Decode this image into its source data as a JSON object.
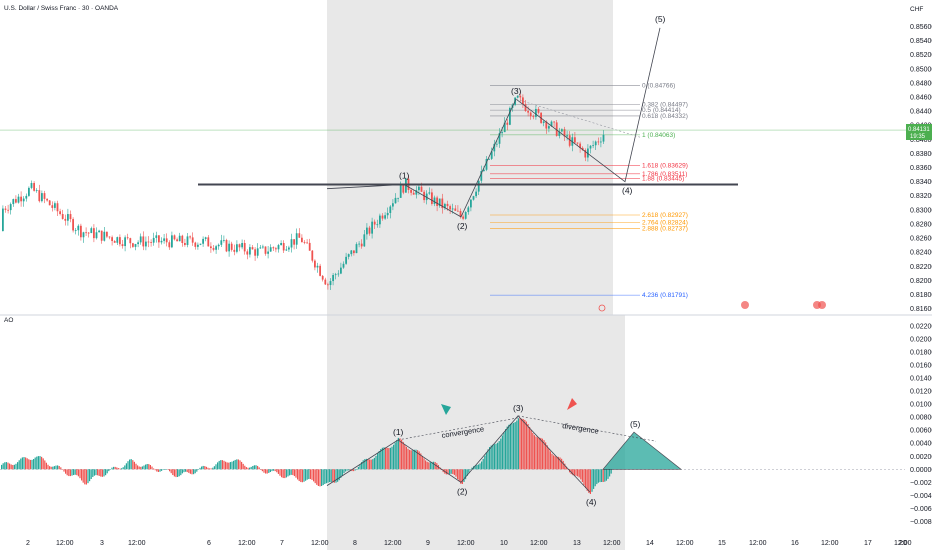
{
  "header": {
    "symbol_title": "U.S. Dollar / Swiss Franc · 30 · OANDA",
    "currency": "CHF",
    "last_price": "0.84131",
    "countdown": "19:35"
  },
  "indicator": {
    "label": "AO"
  },
  "colors": {
    "bull": "#26a69a",
    "bear": "#ef5350",
    "highlight": "#e8e8e8",
    "fib_gray": "#787b86",
    "fib_green": "#4caf50",
    "fib_red": "#f23645",
    "fib_orange": "#ff9800",
    "fib_blue": "#2962ff",
    "price_line": "#4caf50"
  },
  "chart_data": [
    {
      "type": "candlestick",
      "title": "",
      "price_axis_labels": [
        "0.85600",
        "0.85400",
        "0.85200",
        "0.85000",
        "0.84800",
        "0.84600",
        "0.84400",
        "0.84200",
        "0.84000",
        "0.83800",
        "0.83600",
        "0.83400",
        "0.83200",
        "0.83000",
        "0.82800",
        "0.82600",
        "0.82400",
        "0.82200",
        "0.82000",
        "0.81800",
        "0.81600"
      ],
      "time_axis_labels": [
        "2",
        "12:00",
        "3",
        "12:00",
        "6",
        "12:00",
        "7",
        "12:00",
        "8",
        "12:00",
        "9",
        "12:00",
        "10",
        "12:00",
        "13",
        "12:00",
        "14",
        "12:00",
        "15",
        "12:00",
        "16",
        "12:00",
        "17",
        "12:00",
        "20"
      ],
      "ylim": [
        0.8158,
        0.8572
      ],
      "resistance_level": 0.8336,
      "fibonacci": [
        {
          "label": "0 (0.84766)",
          "color": "gray"
        },
        {
          "label": "0.382 (0.84497)",
          "color": "gray"
        },
        {
          "label": "0.5 (0.84414)",
          "color": "gray"
        },
        {
          "label": "0.618 (0.84332)",
          "color": "gray"
        },
        {
          "label": "1 (0.84063)",
          "color": "green"
        },
        {
          "label": "1.618 (0.83629)",
          "color": "red"
        },
        {
          "label": "1.786 (0.83511)",
          "color": "red"
        },
        {
          "label": "1.88 (0.83445)",
          "color": "red"
        },
        {
          "label": "2.618 (0.82927)",
          "color": "orange"
        },
        {
          "label": "2.764 (0.82824)",
          "color": "orange"
        },
        {
          "label": "2.888 (0.82737)",
          "color": "orange"
        },
        {
          "label": "4.236 (0.81791)",
          "color": "blue"
        }
      ],
      "wave_labels": [
        "(1)",
        "(2)",
        "(3)",
        "(4)",
        "(5)"
      ],
      "wave_points": [
        0.833,
        0.8336,
        0.829,
        0.8457,
        0.834,
        0.8558
      ]
    },
    {
      "type": "bar",
      "title": "AO",
      "axis_labels": [
        "0.02200",
        "0.02000",
        "0.01800",
        "0.01600",
        "0.01400",
        "0.01200",
        "0.01000",
        "0.00800",
        "0.00600",
        "0.00400",
        "0.00200",
        "0.00000",
        "−0.00200",
        "−0.00400",
        "−0.00600",
        "−0.00800"
      ],
      "ylim": [
        -0.009,
        0.0232
      ],
      "wave_labels": [
        "(1)",
        "(2)",
        "(3)",
        "(4)",
        "(5)"
      ],
      "wave_points": [
        -0.0025,
        0.0045,
        -0.002,
        0.0082,
        -0.0035,
        0.0057
      ],
      "annotations": [
        "convergence",
        "divergence"
      ]
    }
  ]
}
